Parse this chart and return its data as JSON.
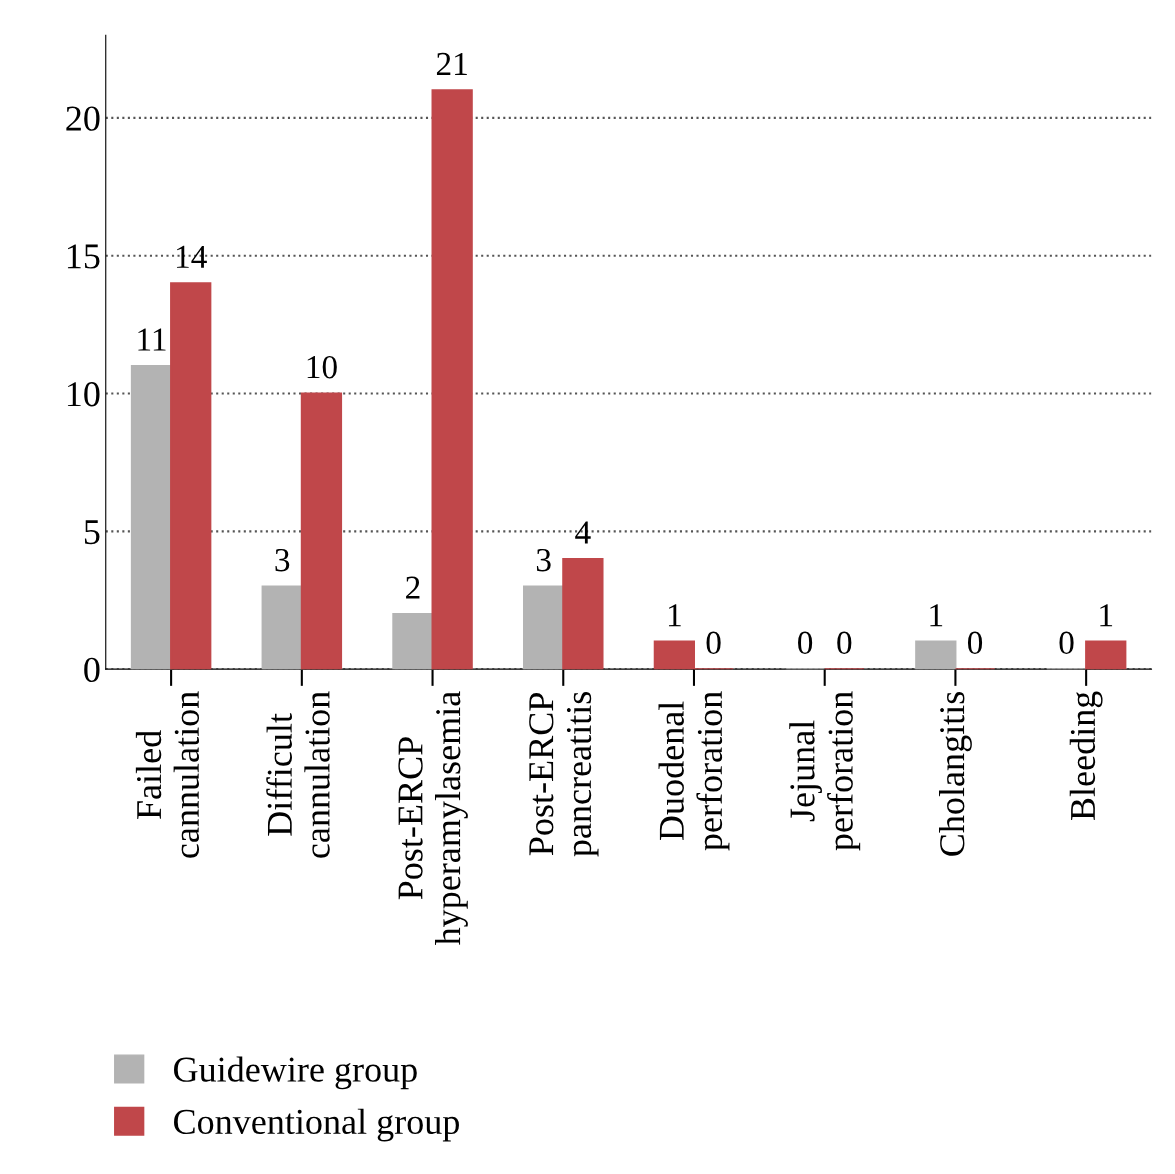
{
  "chart_data": {
    "type": "bar",
    "categories": [
      "Failed\ncannulation",
      "Difficult\ncannulation",
      "Post-ERCP\nhyperamylasemia",
      "Post-ERCP\npancreatitis",
      "Duodenal\nperforation",
      "Jejunal\nperforation",
      "Cholangitis",
      "Bleeding"
    ],
    "series": [
      {
        "name": "Guidewire group",
        "color": "#b3b3b3",
        "colors": [
          "#b3b3b3",
          "#b3b3b3",
          "#b3b3b3",
          "#b3b3b3",
          "#c0474a",
          "#b3b3b3",
          "#b3b3b3",
          "#b3b3b3"
        ],
        "values": [
          11,
          3,
          2,
          3,
          1,
          0,
          1,
          0
        ]
      },
      {
        "name": "Conventional group",
        "color": "#c0474a",
        "values": [
          14,
          10,
          21,
          4,
          0,
          0,
          0,
          1
        ]
      }
    ],
    "ylim": [
      0,
      23
    ],
    "yticks": [
      0,
      5,
      10,
      15,
      20
    ],
    "grid": "y",
    "line_style": "dotted",
    "data_labels": true,
    "legend": "bottom left"
  }
}
